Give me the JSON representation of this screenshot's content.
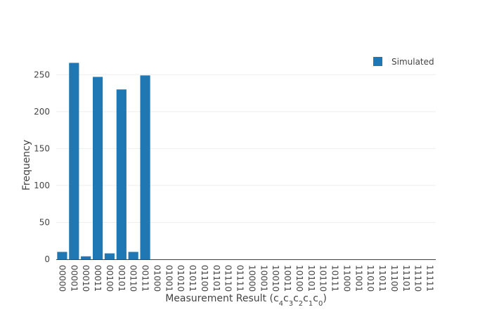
{
  "chart_data": {
    "type": "bar",
    "title": "",
    "xlabel": "Measurement Result (c₄c₃c₂c₁c₀)",
    "xlabel_parts": {
      "prefix": "Measurement Result (",
      "subscripted": [
        {
          "base": "c",
          "sub": "4"
        },
        {
          "base": "c",
          "sub": "3"
        },
        {
          "base": "c",
          "sub": "2"
        },
        {
          "base": "c",
          "sub": "1"
        },
        {
          "base": "c",
          "sub": "0"
        }
      ],
      "suffix": ")"
    },
    "ylabel": "Frequency",
    "ylim": [
      0,
      275
    ],
    "yticks": [
      0,
      50,
      100,
      150,
      200,
      250
    ],
    "grid": true,
    "legend_position": "top-right",
    "categories": [
      "00000",
      "00001",
      "00010",
      "00011",
      "00100",
      "00101",
      "00110",
      "00111",
      "01000",
      "01001",
      "01010",
      "01011",
      "01100",
      "01101",
      "01110",
      "01111",
      "10000",
      "10001",
      "10010",
      "10011",
      "10100",
      "10101",
      "10110",
      "10111",
      "11000",
      "11001",
      "11010",
      "11011",
      "11100",
      "11101",
      "11110",
      "11111"
    ],
    "series": [
      {
        "name": "Simulated",
        "color": "#1f77b4",
        "values": [
          10,
          266,
          4,
          247,
          8,
          230,
          10,
          249,
          0,
          0,
          0,
          0,
          0,
          0,
          0,
          0,
          0,
          0,
          0,
          0,
          0,
          0,
          0,
          0,
          0,
          0,
          0,
          0,
          0,
          0,
          0,
          0
        ]
      }
    ]
  }
}
